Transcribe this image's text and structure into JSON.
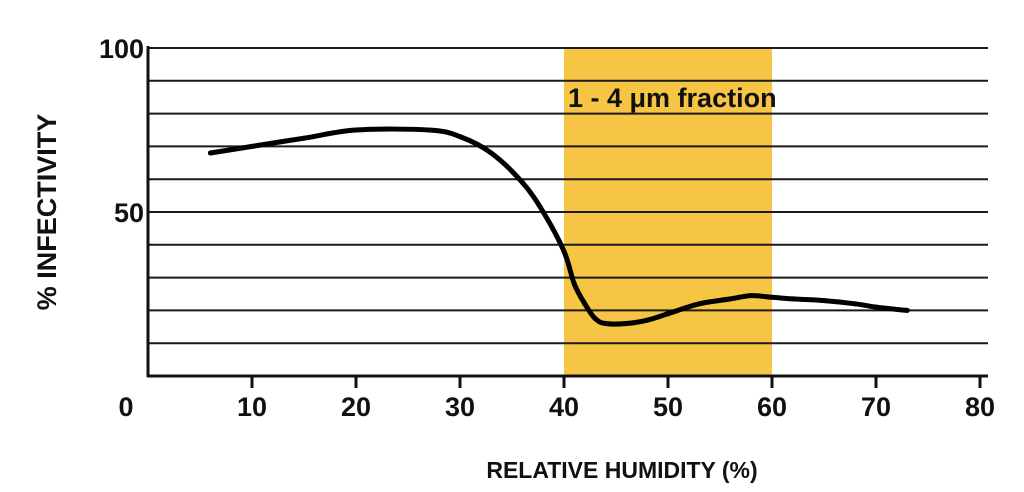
{
  "chart_data": {
    "type": "line",
    "xlabel": "RELATIVE HUMIDITY (%)",
    "ylabel": "% INFECTIVITY",
    "xlim": [
      0,
      80
    ],
    "ylim": [
      0,
      100
    ],
    "x_ticks": [
      0,
      10,
      20,
      30,
      40,
      50,
      60,
      70,
      80
    ],
    "y_tick_labels": [
      {
        "value": 100,
        "label": "100"
      },
      {
        "value": 50,
        "label": "50"
      }
    ],
    "gridlines_y": [
      10,
      20,
      30,
      40,
      50,
      60,
      70,
      80,
      90,
      100
    ],
    "grid": true,
    "highlight_band": {
      "x_range": [
        40,
        60
      ],
      "color": "#f5c543",
      "label": "1 - 4 μm fraction"
    },
    "series": [
      {
        "color": "#000000",
        "x": [
          6,
          10,
          15,
          20,
          27,
          30,
          33,
          36,
          38,
          40,
          41,
          42,
          43,
          44,
          46,
          48,
          50,
          53,
          56,
          58,
          60,
          62,
          65,
          68,
          70,
          73
        ],
        "y": [
          68,
          70,
          72.5,
          75,
          75,
          73,
          68,
          59,
          50,
          38,
          28,
          22,
          17.5,
          16,
          16,
          17,
          19,
          22,
          23.5,
          24.5,
          24,
          23.5,
          23,
          22,
          21,
          20
        ]
      }
    ]
  }
}
